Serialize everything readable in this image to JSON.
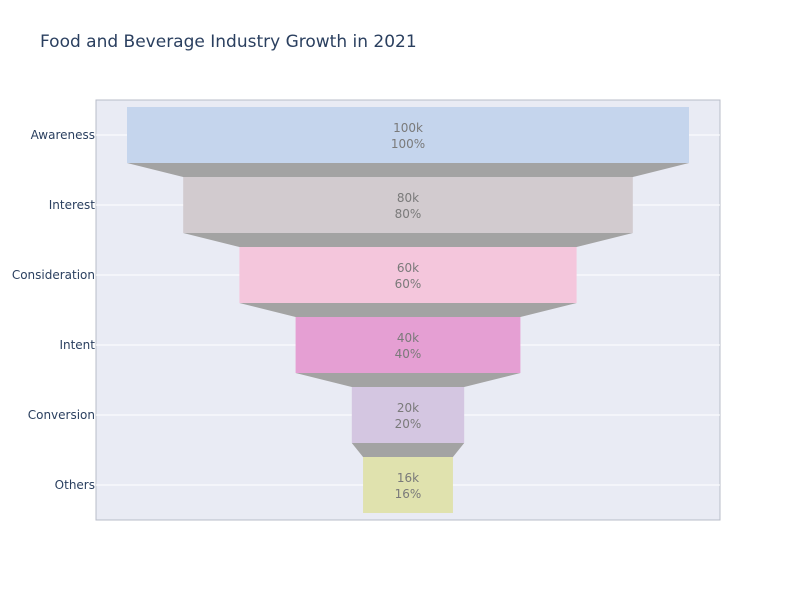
{
  "chart_data": {
    "type": "funnel",
    "title": "Food and Beverage Industry Growth in 2021",
    "categories": [
      "Awareness",
      "Interest",
      "Consideration",
      "Intent",
      "Conversion",
      "Others"
    ],
    "values": [
      100000,
      80000,
      60000,
      40000,
      20000,
      16000
    ],
    "value_labels": [
      "100k",
      "80k",
      "60k",
      "40k",
      "20k",
      "16k"
    ],
    "percent_labels": [
      "100%",
      "80%",
      "60%",
      "40%",
      "20%",
      "16%"
    ],
    "colors": [
      "#c5d5ed",
      "#d2cbcf",
      "#f4c6dc",
      "#e59fd3",
      "#d4c6e1",
      "#e0e2ae"
    ],
    "connector_color": "#a3a3a3",
    "plot_background": "#e9ebf4",
    "grid": true,
    "legend": "none"
  }
}
